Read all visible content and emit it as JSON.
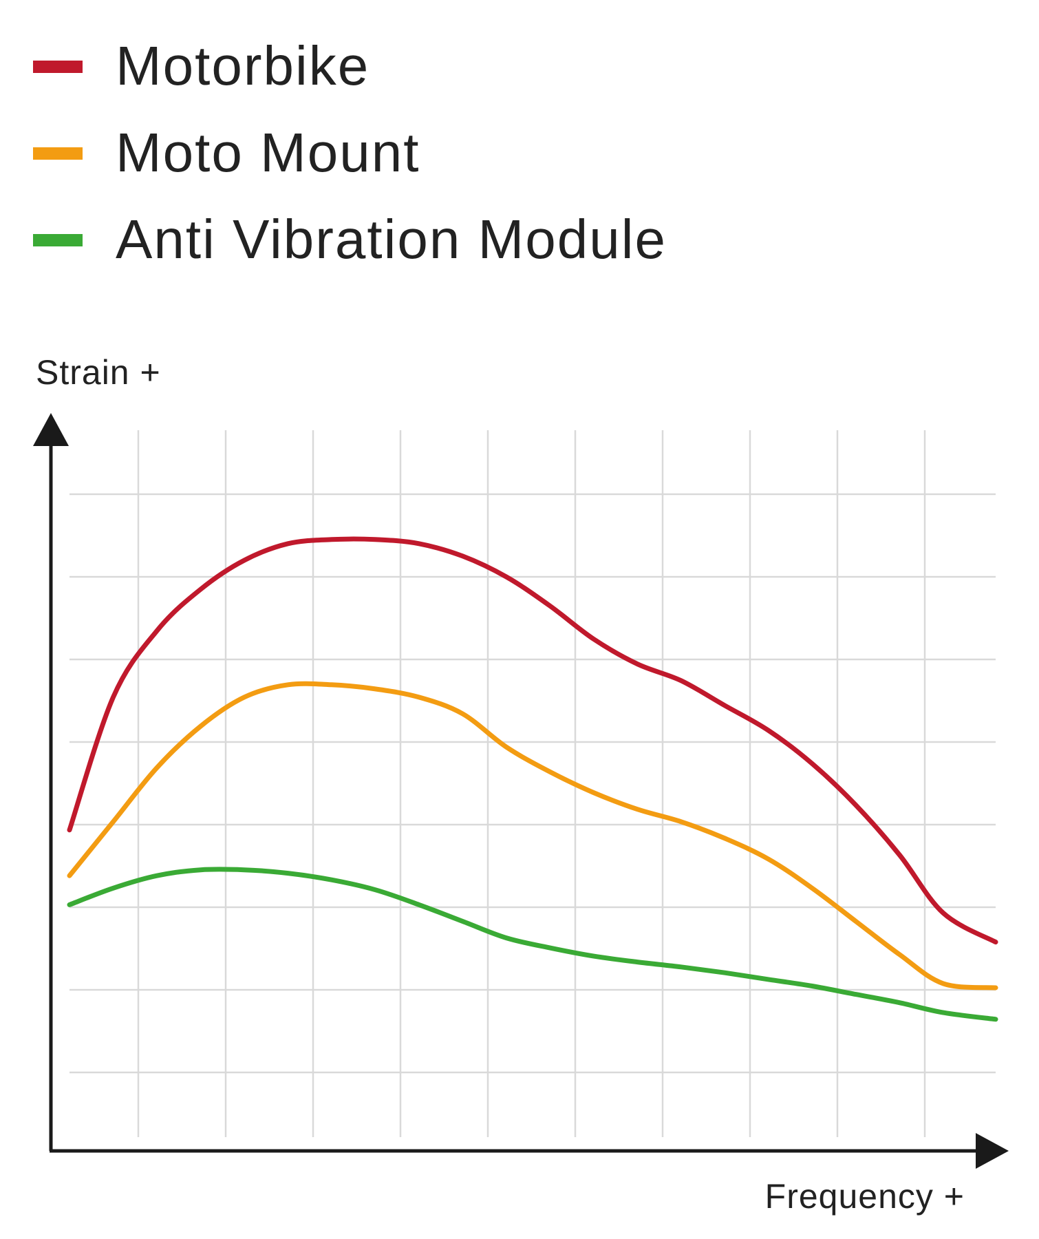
{
  "chart_data": {
    "type": "line",
    "title": "",
    "xlabel": "Frequency +",
    "ylabel": "Strain +",
    "grid": true,
    "legend_position": "top-left",
    "xlim": [
      0,
      10.6
    ],
    "ylim": [
      0,
      8.6
    ],
    "series": [
      {
        "name": "Motorbike",
        "color": "#c0192c",
        "x": [
          0.0,
          0.5,
          1.0,
          1.5,
          2.0,
          2.5,
          3.0,
          3.5,
          4.0,
          4.5,
          5.0,
          5.5,
          6.0,
          6.5,
          7.0,
          7.5,
          8.0,
          8.5,
          9.0,
          9.5,
          10.0,
          10.6
        ],
        "y": [
          3.7,
          5.3,
          6.1,
          6.6,
          6.95,
          7.15,
          7.2,
          7.2,
          7.15,
          7.0,
          6.75,
          6.4,
          6.0,
          5.7,
          5.5,
          5.2,
          4.9,
          4.5,
          4.0,
          3.4,
          2.7,
          2.35
        ]
      },
      {
        "name": "Moto Mount",
        "color": "#f39c12",
        "x": [
          0.0,
          0.5,
          1.0,
          1.5,
          2.0,
          2.5,
          3.0,
          3.5,
          4.0,
          4.5,
          5.0,
          5.5,
          6.0,
          6.5,
          7.0,
          7.5,
          8.0,
          8.5,
          9.0,
          9.5,
          10.0,
          10.6
        ],
        "y": [
          3.15,
          3.8,
          4.45,
          4.95,
          5.3,
          5.45,
          5.45,
          5.4,
          5.3,
          5.1,
          4.7,
          4.4,
          4.15,
          3.95,
          3.8,
          3.6,
          3.35,
          3.0,
          2.6,
          2.2,
          1.85,
          1.8
        ]
      },
      {
        "name": "Anti Vibration Module",
        "color": "#3aaa35",
        "x": [
          0.0,
          0.5,
          1.0,
          1.5,
          2.0,
          2.5,
          3.0,
          3.5,
          4.0,
          4.5,
          5.0,
          5.5,
          6.0,
          6.5,
          7.0,
          7.5,
          8.0,
          8.5,
          9.0,
          9.5,
          10.0,
          10.6
        ],
        "y": [
          2.8,
          3.0,
          3.15,
          3.22,
          3.22,
          3.18,
          3.1,
          2.98,
          2.8,
          2.6,
          2.4,
          2.28,
          2.18,
          2.11,
          2.05,
          1.98,
          1.9,
          1.82,
          1.72,
          1.62,
          1.5,
          1.42
        ]
      }
    ]
  }
}
